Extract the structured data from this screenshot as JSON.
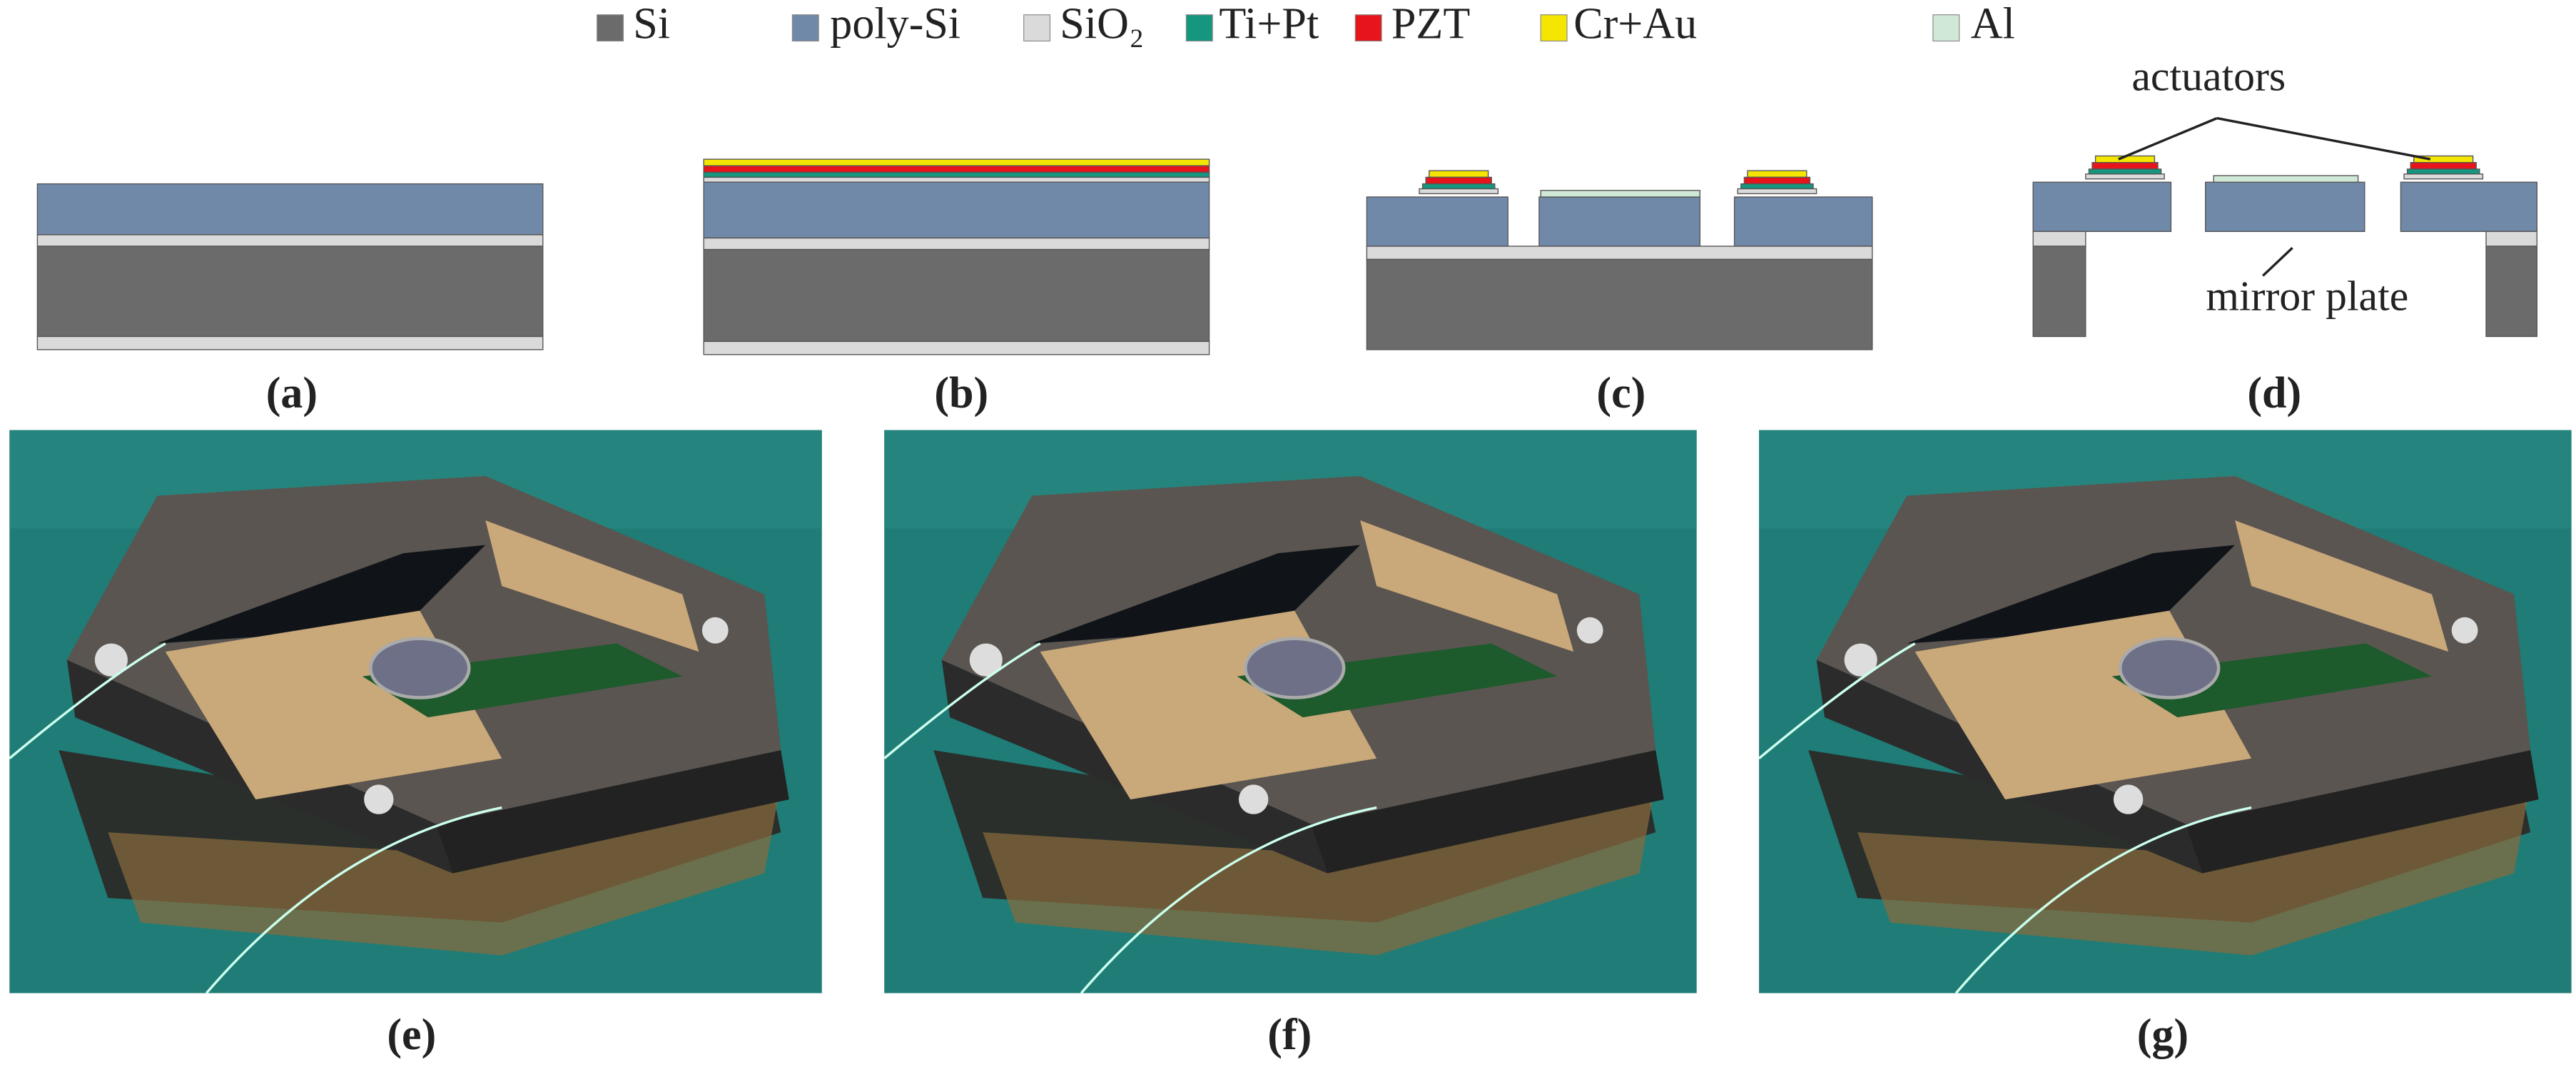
{
  "legend": [
    {
      "label": "Si",
      "color": "#6b6b6b"
    },
    {
      "label": "poly-Si",
      "color": "#7189a9"
    },
    {
      "label": "SiO₂",
      "color": "#dadada"
    },
    {
      "label": "Ti+Pt",
      "color": "#15977f"
    },
    {
      "label": "PZT",
      "color": "#e8141c"
    },
    {
      "label": "Cr+Au",
      "color": "#f4e600"
    },
    {
      "label": "Al",
      "color": "#cfe9d6"
    }
  ],
  "annotations": {
    "actuators": "actuators",
    "mirror_plate": "mirror plate"
  },
  "panel_labels": [
    "(a)",
    "(b)",
    "(c)",
    "(d)",
    "(e)",
    "(f)",
    "(g)"
  ]
}
